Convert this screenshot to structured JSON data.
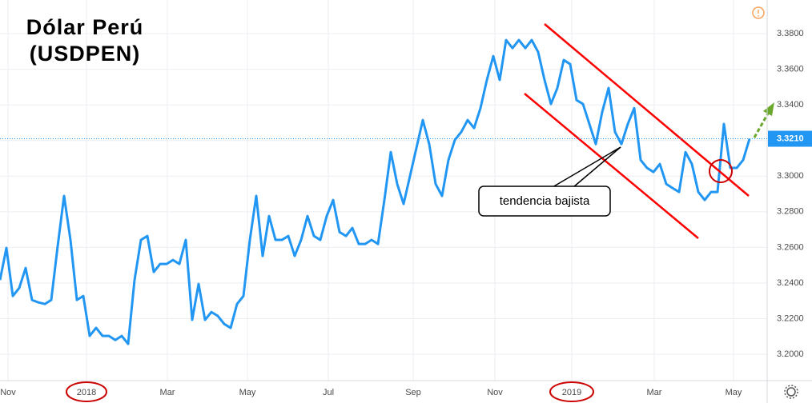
{
  "chart_data": {
    "type": "line",
    "title": [
      "Dólar Perú",
      "(USDPEN)"
    ],
    "annotation": "tendencia bajista",
    "values": [
      3.2417,
      3.2597,
      3.2327,
      3.2372,
      3.2484,
      3.2305,
      3.2291,
      3.2282,
      3.2305,
      3.2606,
      3.2889,
      3.2642,
      3.2305,
      3.2327,
      3.2103,
      3.2148,
      3.2103,
      3.2103,
      3.208,
      3.2103,
      3.2058,
      3.2417,
      3.2642,
      3.2664,
      3.2462,
      3.2507,
      3.2507,
      3.2529,
      3.2507,
      3.2642,
      3.2193,
      3.2395,
      3.2193,
      3.2237,
      3.2215,
      3.217,
      3.2148,
      3.2282,
      3.2327,
      3.2642,
      3.2889,
      3.2552,
      3.2776,
      3.2642,
      3.2642,
      3.2664,
      3.2552,
      3.2642,
      3.2776,
      3.2664,
      3.2642,
      3.2776,
      3.2866,
      3.2686,
      3.2664,
      3.2709,
      3.2619,
      3.2619,
      3.2642,
      3.2619,
      3.2866,
      3.3135,
      3.2956,
      3.2844,
      3.3001,
      3.3158,
      3.3315,
      3.318,
      3.2956,
      3.2889,
      3.3091,
      3.3203,
      3.3248,
      3.3315,
      3.327,
      3.3382,
      3.354,
      3.3674,
      3.354,
      3.3764,
      3.3719,
      3.3764,
      3.3719,
      3.3764,
      3.3697,
      3.354,
      3.3405,
      3.3495,
      3.3652,
      3.3629,
      3.3427,
      3.3405,
      3.3293,
      3.318,
      3.336,
      3.3495,
      3.3248,
      3.318,
      3.3293,
      3.3382,
      3.3091,
      3.3046,
      3.3023,
      3.3068,
      3.2956,
      3.2933,
      3.2911,
      3.3135,
      3.3068,
      3.2911,
      3.2866,
      3.2911,
      3.2911,
      3.3293,
      3.3046,
      3.3046,
      3.3091,
      3.321
    ],
    "color": "#2196f3",
    "xlim": [
      0,
      119.75
    ],
    "xticks": [
      {
        "value": 1.25,
        "label": "Nov"
      },
      {
        "value": 13.5,
        "label": "2018"
      },
      {
        "value": 26.125,
        "label": "Mar"
      },
      {
        "value": 38.625,
        "label": "May"
      },
      {
        "value": 51.25,
        "label": "Jul"
      },
      {
        "value": 64.5,
        "label": "Sep"
      },
      {
        "value": 77.25,
        "label": "Nov"
      },
      {
        "value": 89.25,
        "label": "2019"
      },
      {
        "value": 102.125,
        "label": "Mar"
      },
      {
        "value": 114.5,
        "label": "May"
      }
    ],
    "ylim": [
      3.1852,
      3.3989
    ],
    "yticks": [
      {
        "value": 3.2,
        "label": "3.2000"
      },
      {
        "value": 3.22,
        "label": "3.2200"
      },
      {
        "value": 3.24,
        "label": "3.2400"
      },
      {
        "value": 3.26,
        "label": "3.2600"
      },
      {
        "value": 3.28,
        "label": "3.2800"
      },
      {
        "value": 3.3,
        "label": "3.3000"
      },
      {
        "value": 3.32,
        "label": "3.3200"
      },
      {
        "value": 3.34,
        "label": "3.3400"
      },
      {
        "value": 3.36,
        "label": "3.3600"
      },
      {
        "value": 3.38,
        "label": "3.3800"
      }
    ],
    "price_line": {
      "value": 3.321,
      "label": "3.3210"
    },
    "grid": true
  }
}
